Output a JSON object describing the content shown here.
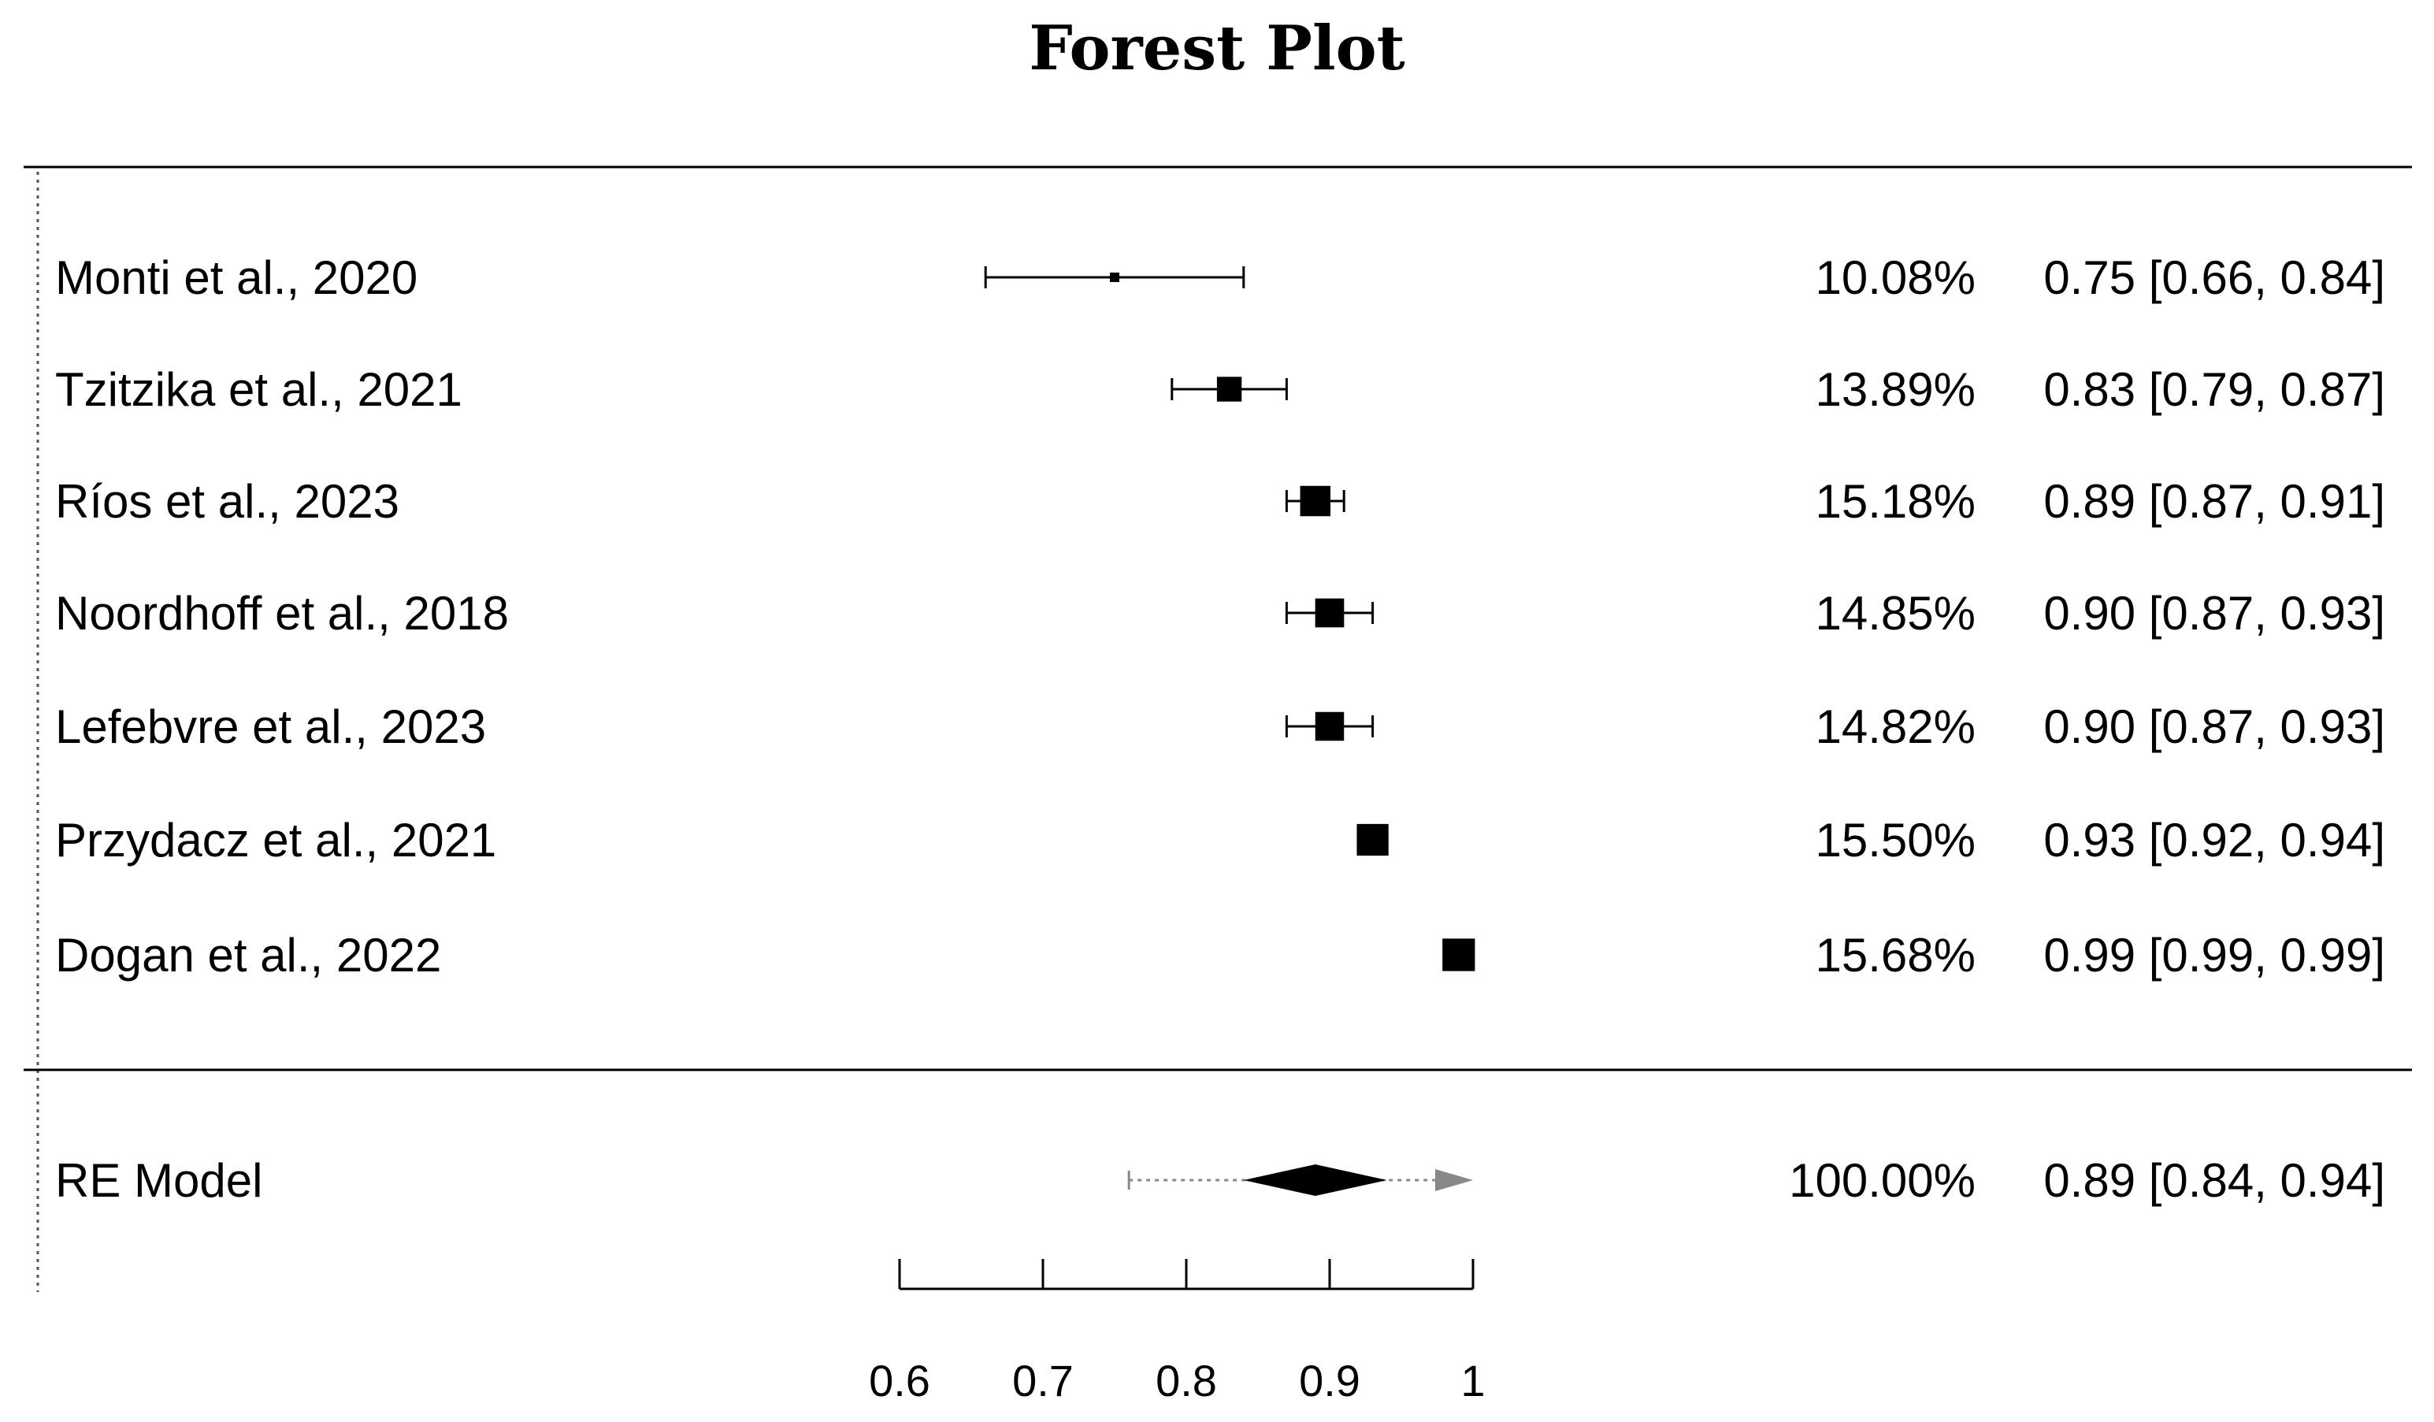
{
  "chart_data": {
    "type": "forest",
    "title": "Forest Plot",
    "xlim": [
      0.6,
      1.0
    ],
    "xticks": [
      "0.6",
      "0.7",
      "0.8",
      "0.9",
      "1"
    ],
    "xtick_values": [
      0.6,
      0.7,
      0.8,
      0.9,
      1.0
    ],
    "studies": [
      {
        "label": "Monti et al., 2020",
        "estimate": 0.75,
        "lower": 0.66,
        "upper": 0.84,
        "weight": 10.08,
        "weight_text": "10.08%",
        "ci_text": "0.75 [0.66, 0.84]"
      },
      {
        "label": "Tzitzika et al., 2021",
        "estimate": 0.83,
        "lower": 0.79,
        "upper": 0.87,
        "weight": 13.89,
        "weight_text": "13.89%",
        "ci_text": "0.83 [0.79, 0.87]"
      },
      {
        "label": "Ríos et al., 2023",
        "estimate": 0.89,
        "lower": 0.87,
        "upper": 0.91,
        "weight": 15.18,
        "weight_text": "15.18%",
        "ci_text": "0.89 [0.87, 0.91]"
      },
      {
        "label": "Noordhoff et al., 2018",
        "estimate": 0.9,
        "lower": 0.87,
        "upper": 0.93,
        "weight": 14.85,
        "weight_text": "14.85%",
        "ci_text": "0.90 [0.87, 0.93]"
      },
      {
        "label": "Lefebvre et al., 2023",
        "estimate": 0.9,
        "lower": 0.87,
        "upper": 0.93,
        "weight": 14.82,
        "weight_text": "14.82%",
        "ci_text": "0.90 [0.87, 0.93]"
      },
      {
        "label": "Przydacz et al., 2021",
        "estimate": 0.93,
        "lower": 0.92,
        "upper": 0.94,
        "weight": 15.5,
        "weight_text": "15.50%",
        "ci_text": "0.93 [0.92, 0.94]"
      },
      {
        "label": "Dogan et al., 2022",
        "estimate": 0.99,
        "lower": 0.99,
        "upper": 0.99,
        "weight": 15.68,
        "weight_text": "15.68%",
        "ci_text": "0.99 [0.99, 0.99]"
      }
    ],
    "summary": {
      "label": "RE Model",
      "estimate": 0.89,
      "lower": 0.84,
      "upper": 0.94,
      "pi_lower": 0.76,
      "pi_upper": 1.0,
      "weight_text": "100.00%",
      "ci_text": "0.89 [0.84, 0.94]"
    },
    "colors": {
      "marks": "#000000",
      "prediction_interval": "#888888"
    }
  }
}
